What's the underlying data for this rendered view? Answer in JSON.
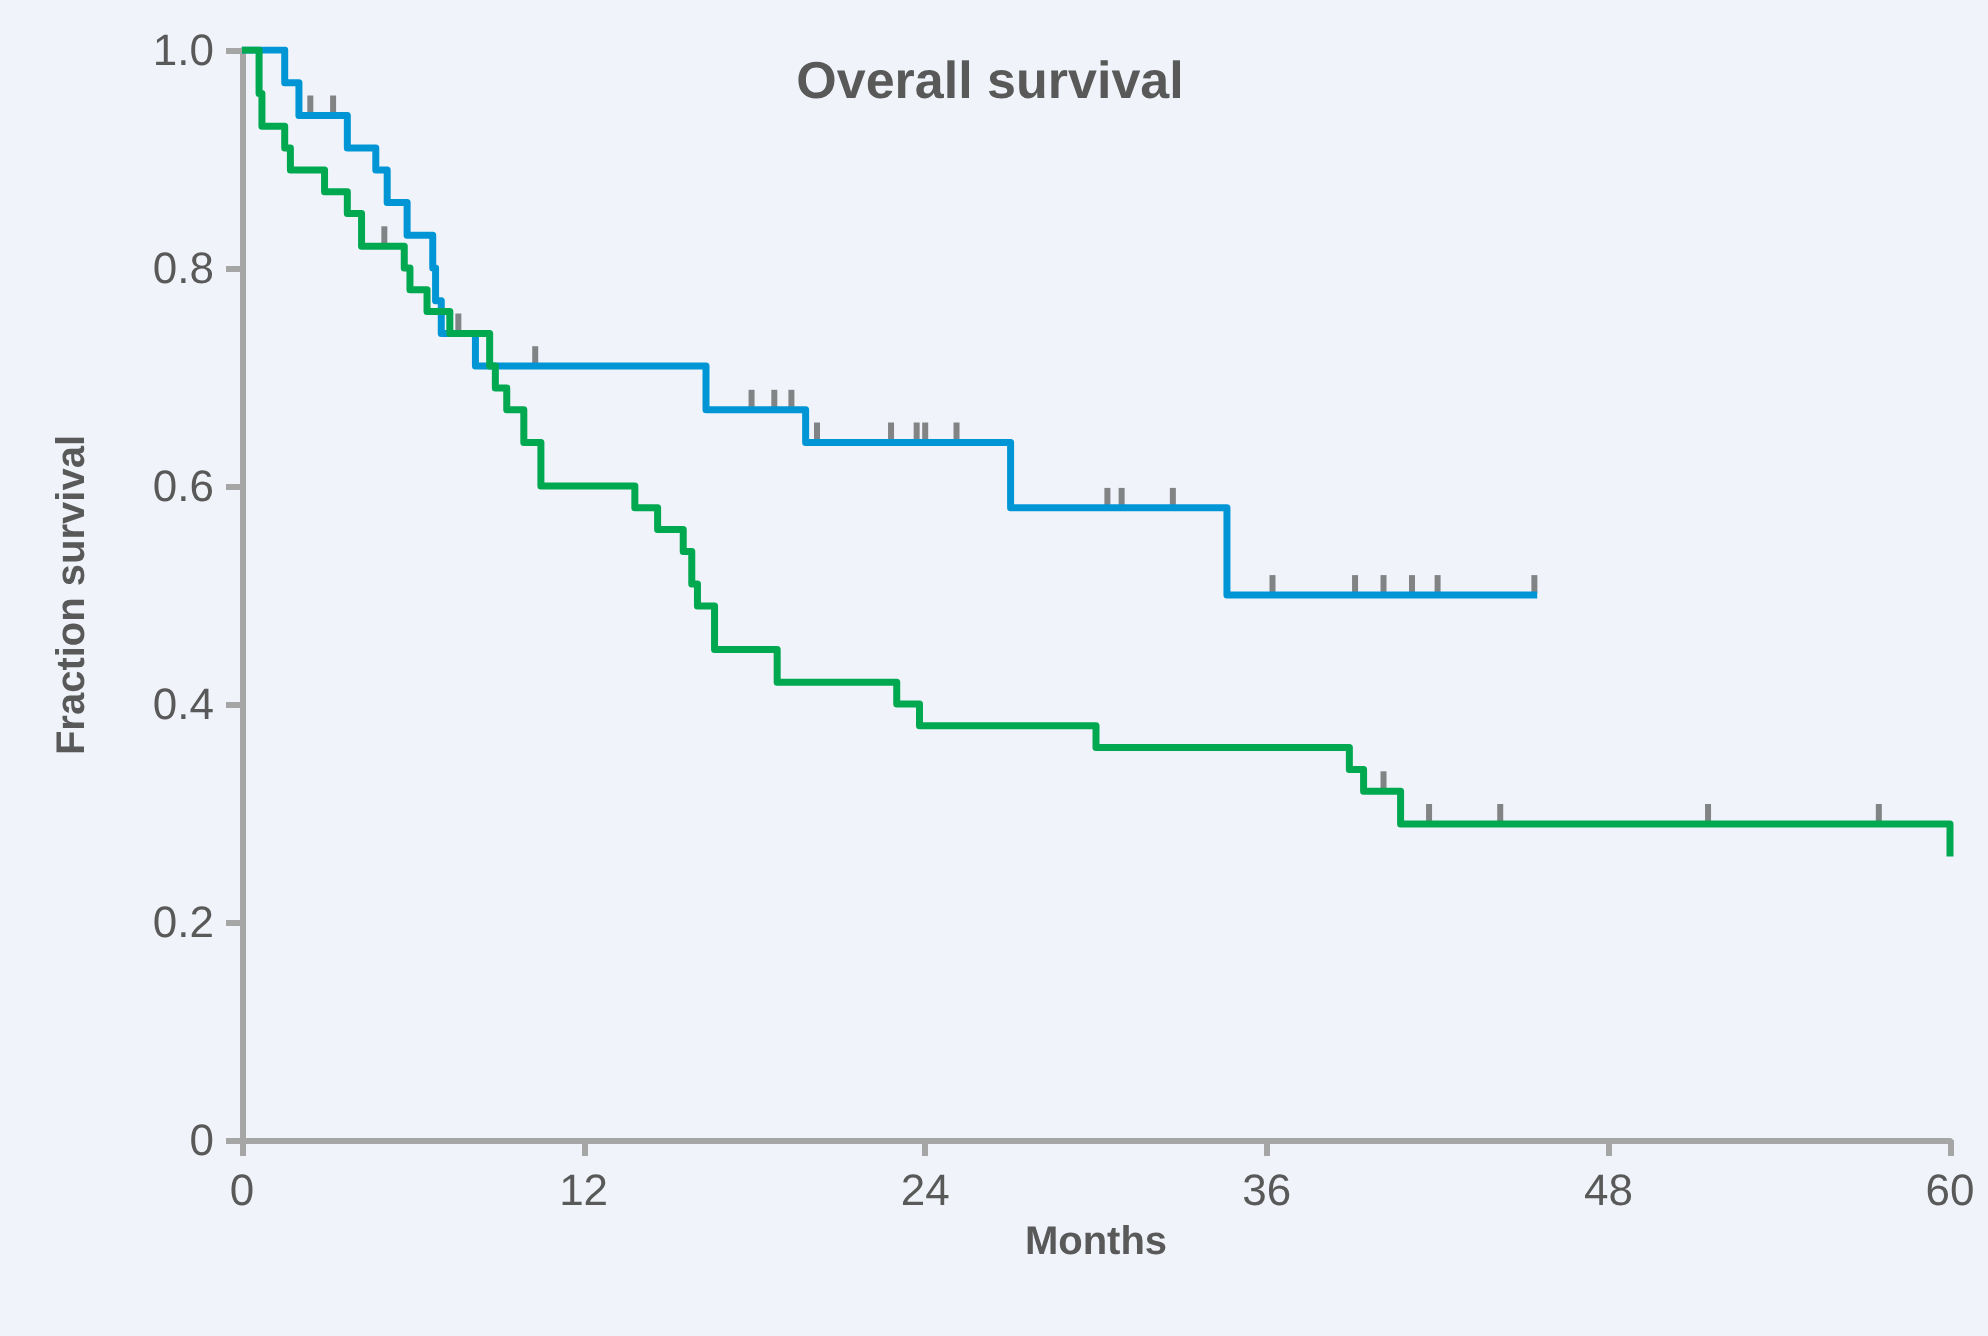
{
  "chart_data": {
    "type": "step",
    "title": "Overall survival",
    "xlabel": "Months",
    "ylabel": "Fraction survival",
    "xlim": [
      0,
      60
    ],
    "xticks": [
      0,
      12,
      24,
      36,
      48,
      60
    ],
    "ylim": [
      0,
      1
    ],
    "yticks": [
      0,
      {
        "value": 0.2,
        "label": "0.2"
      },
      {
        "value": 0.4,
        "label": "0.4"
      },
      {
        "value": 0.6,
        "label": "0.6"
      },
      {
        "value": 0.8,
        "label": "0.8"
      },
      {
        "value": 1,
        "label": "1.0"
      }
    ],
    "grid": false,
    "marker": "none",
    "series": [
      {
        "color": "#0096d6",
        "x": [
          0,
          1.5,
          2.0,
          3.7,
          4.7,
          5.1,
          5.8,
          6.7,
          6.8,
          7.0,
          8.2,
          16.3,
          19.8,
          27.0,
          34.6,
          45.5
        ],
        "values": [
          1,
          0.97,
          0.94,
          0.91,
          0.89,
          0.86,
          0.83,
          0.8,
          0.77,
          0.74,
          0.71,
          0.67,
          0.64,
          0.58,
          0.5,
          0.5
        ]
      },
      {
        "color": "#00a850",
        "x": [
          0,
          0.6,
          0.7,
          1.5,
          1.7,
          2.9,
          3.7,
          4.2,
          5.7,
          5.9,
          6.5,
          7.3,
          8.7,
          8.9,
          9.3,
          9.9,
          10.5,
          13.8,
          14.6,
          15.5,
          15.8,
          16.0,
          16.6,
          18.8,
          23.0,
          23.8,
          30.0,
          38.9,
          39.4,
          40.7,
          60
        ],
        "values": [
          1,
          0.96,
          0.93,
          0.91,
          0.89,
          0.87,
          0.85,
          0.82,
          0.8,
          0.78,
          0.76,
          0.74,
          0.71,
          0.69,
          0.67,
          0.64,
          0.6,
          0.58,
          0.56,
          0.54,
          0.51,
          0.49,
          0.45,
          0.42,
          0.4,
          0.38,
          0.36,
          0.34,
          0.32,
          0.29,
          0.26
        ]
      },
      {
        "type": "scatter",
        "marker": "square",
        "color": "#666666",
        "x": [
          2.4,
          3.2,
          7.6,
          10.3,
          17.9,
          18.7,
          19.3,
          20.2,
          22.8,
          23.7,
          24.0,
          25.1,
          30.4,
          30.9,
          32.7,
          36.2,
          39.1,
          40.1,
          41.1,
          42.0,
          45.4
        ],
        "values": [
          0.95,
          0.95,
          0.75,
          0.72,
          0.68,
          0.68,
          0.68,
          0.65,
          0.65,
          0.65,
          0.65,
          0.65,
          0.59,
          0.59,
          0.59,
          0.51,
          0.51,
          0.51,
          0.51,
          0.51,
          0.51
        ]
      },
      {
        "type": "scatter",
        "marker": "square",
        "color": "#666666",
        "x": [
          5.0,
          40.1,
          41.7,
          44.2,
          51.5,
          57.5
        ],
        "values": [
          0.83,
          0.33,
          0.3,
          0.3,
          0.3,
          0.3
        ]
      }
    ]
  }
}
